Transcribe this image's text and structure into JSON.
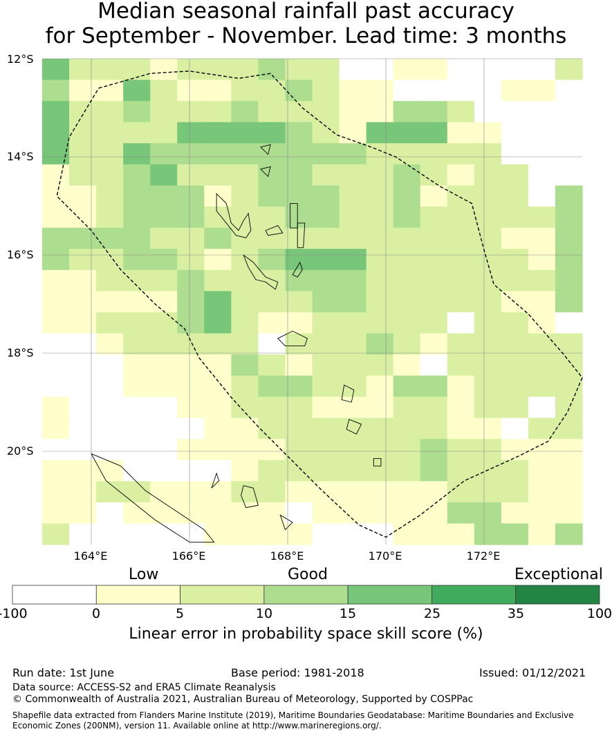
{
  "title_line1": "Median seasonal rainfall past accuracy",
  "title_line2": "for September - November. Lead time: 3 months",
  "map": {
    "lat_labels": [
      "12°S",
      "14°S",
      "16°S",
      "18°S",
      "20°S"
    ],
    "lon_labels": [
      "164°E",
      "166°E",
      "168°E",
      "170°E",
      "172°E"
    ],
    "category_colors": [
      "#ffffff",
      "#ffffcc",
      "#d9f0a3",
      "#addd8e",
      "#78c679",
      "#41ab5d",
      "#238443"
    ],
    "grid": [
      [
        4,
        2,
        2,
        2,
        1,
        2,
        2,
        2,
        3,
        2,
        2,
        0,
        0,
        1,
        1,
        0,
        0,
        0,
        0,
        2
      ],
      [
        3,
        1,
        1,
        4,
        2,
        1,
        1,
        2,
        2,
        3,
        2,
        1,
        1,
        0,
        0,
        0,
        0,
        1,
        1,
        0
      ],
      [
        4,
        2,
        2,
        3,
        2,
        2,
        2,
        3,
        2,
        2,
        2,
        1,
        1,
        3,
        3,
        2,
        0,
        0,
        0,
        0
      ],
      [
        4,
        2,
        2,
        2,
        2,
        4,
        4,
        4,
        4,
        3,
        2,
        1,
        4,
        4,
        4,
        1,
        1,
        0,
        0,
        0
      ],
      [
        4,
        2,
        2,
        4,
        3,
        3,
        3,
        3,
        3,
        3,
        3,
        3,
        2,
        2,
        2,
        2,
        2,
        0,
        0,
        0
      ],
      [
        1,
        2,
        2,
        3,
        4,
        2,
        2,
        2,
        3,
        3,
        2,
        2,
        2,
        3,
        2,
        1,
        2,
        2,
        0,
        0
      ],
      [
        1,
        1,
        2,
        3,
        3,
        3,
        1,
        2,
        3,
        3,
        3,
        2,
        2,
        3,
        1,
        2,
        2,
        2,
        0,
        3
      ],
      [
        1,
        1,
        2,
        3,
        3,
        3,
        2,
        2,
        2,
        3,
        3,
        2,
        2,
        3,
        2,
        2,
        2,
        2,
        2,
        3
      ],
      [
        3,
        3,
        3,
        3,
        2,
        2,
        3,
        2,
        2,
        2,
        2,
        2,
        2,
        2,
        2,
        2,
        2,
        1,
        1,
        3
      ],
      [
        3,
        2,
        2,
        3,
        3,
        2,
        1,
        2,
        3,
        4,
        4,
        4,
        2,
        2,
        2,
        2,
        2,
        2,
        1,
        3
      ],
      [
        1,
        1,
        2,
        2,
        2,
        3,
        2,
        2,
        2,
        3,
        3,
        3,
        2,
        2,
        2,
        2,
        2,
        2,
        2,
        3
      ],
      [
        1,
        1,
        1,
        1,
        1,
        3,
        4,
        2,
        2,
        2,
        3,
        3,
        2,
        2,
        2,
        2,
        2,
        1,
        1,
        3
      ],
      [
        1,
        1,
        2,
        2,
        2,
        3,
        4,
        2,
        1,
        1,
        2,
        2,
        2,
        2,
        2,
        0,
        2,
        2,
        1,
        0
      ],
      [
        0,
        0,
        1,
        2,
        2,
        2,
        2,
        2,
        0,
        2,
        2,
        2,
        3,
        2,
        1,
        2,
        2,
        2,
        2,
        2
      ],
      [
        0,
        0,
        0,
        1,
        1,
        1,
        1,
        3,
        2,
        1,
        2,
        2,
        2,
        1,
        0,
        2,
        2,
        2,
        2,
        2
      ],
      [
        0,
        0,
        0,
        1,
        1,
        1,
        1,
        2,
        3,
        3,
        2,
        2,
        1,
        3,
        3,
        1,
        2,
        2,
        2,
        2
      ],
      [
        1,
        0,
        0,
        0,
        0,
        1,
        1,
        2,
        2,
        2,
        1,
        1,
        1,
        2,
        2,
        1,
        2,
        2,
        0,
        2
      ],
      [
        1,
        0,
        0,
        0,
        0,
        0,
        1,
        1,
        2,
        2,
        2,
        2,
        2,
        2,
        2,
        1,
        1,
        0,
        2,
        2
      ],
      [
        0,
        0,
        0,
        0,
        0,
        1,
        1,
        1,
        1,
        2,
        2,
        2,
        2,
        2,
        3,
        2,
        2,
        1,
        1,
        1
      ],
      [
        1,
        1,
        1,
        0,
        0,
        0,
        0,
        1,
        2,
        2,
        2,
        2,
        2,
        2,
        3,
        2,
        2,
        2,
        1,
        1
      ],
      [
        1,
        1,
        2,
        2,
        1,
        1,
        1,
        2,
        2,
        1,
        1,
        1,
        1,
        1,
        1,
        2,
        2,
        2,
        1,
        1
      ],
      [
        1,
        1,
        0,
        1,
        1,
        1,
        1,
        1,
        1,
        0,
        1,
        1,
        1,
        1,
        1,
        3,
        3,
        1,
        1,
        1
      ],
      [
        2,
        0,
        0,
        0,
        0,
        0,
        1,
        1,
        1,
        1,
        0,
        0,
        0,
        1,
        1,
        1,
        3,
        3,
        1,
        3
      ]
    ],
    "grid_lon_range": [
      163.0,
      174.0
    ],
    "grid_lat_range": [
      -11.5,
      -21.9
    ],
    "eez_boundary": [
      [
        164.15,
        -12.6
      ],
      [
        165.2,
        -12.3
      ],
      [
        166.0,
        -12.25
      ],
      [
        167.0,
        -12.4
      ],
      [
        167.65,
        -12.3
      ],
      [
        168.3,
        -13.0
      ],
      [
        169.0,
        -13.55
      ],
      [
        169.7,
        -13.8
      ],
      [
        170.2,
        -14.0
      ],
      [
        171.1,
        -14.6
      ],
      [
        171.75,
        -14.95
      ],
      [
        172.0,
        -15.9
      ],
      [
        172.2,
        -16.6
      ],
      [
        172.9,
        -17.2
      ],
      [
        173.6,
        -18.0
      ],
      [
        174.0,
        -18.5
      ],
      [
        173.7,
        -19.2
      ],
      [
        173.3,
        -19.8
      ],
      [
        172.7,
        -20.1
      ],
      [
        171.6,
        -20.6
      ],
      [
        170.7,
        -21.3
      ],
      [
        170.0,
        -21.75
      ],
      [
        169.45,
        -21.5
      ],
      [
        168.7,
        -20.8
      ],
      [
        167.9,
        -20.0
      ],
      [
        167.4,
        -19.5
      ],
      [
        166.85,
        -18.9
      ],
      [
        166.2,
        -18.1
      ],
      [
        165.9,
        -17.5
      ],
      [
        165.3,
        -17.0
      ],
      [
        164.6,
        -16.3
      ],
      [
        164.0,
        -15.5
      ],
      [
        163.3,
        -14.8
      ],
      [
        163.55,
        -13.6
      ],
      [
        164.15,
        -12.6
      ]
    ],
    "islands": [
      [
        [
          166.55,
          -14.75
        ],
        [
          166.75,
          -14.95
        ],
        [
          166.85,
          -15.35
        ],
        [
          167.0,
          -15.5
        ],
        [
          167.1,
          -15.3
        ],
        [
          167.2,
          -15.15
        ],
        [
          167.25,
          -15.5
        ],
        [
          167.15,
          -15.65
        ],
        [
          166.95,
          -15.6
        ],
        [
          166.75,
          -15.35
        ],
        [
          166.55,
          -15.1
        ],
        [
          166.55,
          -14.75
        ]
      ],
      [
        [
          167.1,
          -16.0
        ],
        [
          167.3,
          -16.15
        ],
        [
          167.55,
          -16.45
        ],
        [
          167.8,
          -16.55
        ],
        [
          167.75,
          -16.7
        ],
        [
          167.55,
          -16.55
        ],
        [
          167.35,
          -16.5
        ],
        [
          167.2,
          -16.25
        ],
        [
          167.1,
          -16.0
        ]
      ],
      [
        [
          168.1,
          -16.4
        ],
        [
          168.25,
          -16.15
        ],
        [
          168.3,
          -16.3
        ],
        [
          168.2,
          -16.45
        ],
        [
          168.1,
          -16.4
        ]
      ],
      [
        [
          168.2,
          -15.35
        ],
        [
          168.35,
          -15.35
        ],
        [
          168.32,
          -15.85
        ],
        [
          168.2,
          -15.85
        ],
        [
          168.2,
          -15.35
        ]
      ],
      [
        [
          168.05,
          -14.95
        ],
        [
          168.2,
          -14.95
        ],
        [
          168.2,
          -15.45
        ],
        [
          168.05,
          -15.45
        ],
        [
          168.05,
          -14.95
        ]
      ],
      [
        [
          167.55,
          -15.5
        ],
        [
          167.8,
          -15.4
        ],
        [
          167.9,
          -15.55
        ],
        [
          167.6,
          -15.6
        ],
        [
          167.55,
          -15.5
        ]
      ],
      [
        [
          167.8,
          -17.7
        ],
        [
          168.1,
          -17.55
        ],
        [
          168.4,
          -17.7
        ],
        [
          168.35,
          -17.85
        ],
        [
          167.95,
          -17.85
        ],
        [
          167.8,
          -17.7
        ]
      ],
      [
        [
          169.15,
          -18.65
        ],
        [
          169.35,
          -18.75
        ],
        [
          169.3,
          -19.0
        ],
        [
          169.1,
          -18.95
        ],
        [
          169.15,
          -18.65
        ]
      ],
      [
        [
          169.25,
          -19.35
        ],
        [
          169.5,
          -19.45
        ],
        [
          169.4,
          -19.65
        ],
        [
          169.2,
          -19.55
        ],
        [
          169.25,
          -19.35
        ]
      ],
      [
        [
          169.75,
          -20.15
        ],
        [
          169.9,
          -20.15
        ],
        [
          169.9,
          -20.3
        ],
        [
          169.75,
          -20.3
        ],
        [
          169.75,
          -20.15
        ]
      ],
      [
        [
          167.45,
          -13.8
        ],
        [
          167.65,
          -13.75
        ],
        [
          167.6,
          -13.95
        ],
        [
          167.45,
          -13.8
        ]
      ],
      [
        [
          167.45,
          -14.25
        ],
        [
          167.65,
          -14.2
        ],
        [
          167.6,
          -14.4
        ],
        [
          167.45,
          -14.25
        ]
      ],
      [
        [
          164.0,
          -20.05
        ],
        [
          164.6,
          -20.3
        ],
        [
          165.1,
          -20.8
        ],
        [
          165.7,
          -21.2
        ],
        [
          166.3,
          -21.6
        ],
        [
          166.5,
          -21.85
        ],
        [
          166.0,
          -21.85
        ],
        [
          165.3,
          -21.4
        ],
        [
          164.8,
          -21.0
        ],
        [
          164.3,
          -20.6
        ],
        [
          164.0,
          -20.05
        ]
      ],
      [
        [
          167.1,
          -20.7
        ],
        [
          167.3,
          -20.75
        ],
        [
          167.4,
          -21.1
        ],
        [
          167.15,
          -21.15
        ],
        [
          167.05,
          -20.9
        ],
        [
          167.1,
          -20.7
        ]
      ],
      [
        [
          167.85,
          -21.3
        ],
        [
          168.1,
          -21.45
        ],
        [
          167.95,
          -21.6
        ],
        [
          167.85,
          -21.3
        ]
      ],
      [
        [
          166.55,
          -20.45
        ],
        [
          166.6,
          -20.6
        ],
        [
          166.45,
          -20.75
        ],
        [
          166.55,
          -20.45
        ]
      ]
    ]
  },
  "categories": {
    "low": "Low",
    "good": "Good",
    "exceptional": "Exceptional"
  },
  "colorbar": {
    "ticks": [
      "-100",
      "0",
      "5",
      "10",
      "15",
      "25",
      "35",
      "100"
    ],
    "colors": [
      "#ffffff",
      "#ffffcc",
      "#d9f0a3",
      "#addd8e",
      "#78c679",
      "#41ab5d",
      "#238443"
    ],
    "title": "Linear error in probability space skill score (%)"
  },
  "footer": {
    "run_date": "Run date: 1st June",
    "base_period": "Base period: 1981-2018",
    "issued": "Issued: 01/12/2021",
    "data_source": "Data source: ACCESS-S2 and ERA5 Climate Reanalysis",
    "copyright": "© Commonwealth of Australia 2021, Australian Bureau of Meteorology, Supported by COSPPac",
    "shapefile": "Shapefile data extracted from Flanders Marine Institute (2019), Maritime Boundaries Geodatabase: Maritime Boundaries and Exclusive Economic Zones (200NM), version 11. Available online at http://www.marineregions.org/."
  }
}
